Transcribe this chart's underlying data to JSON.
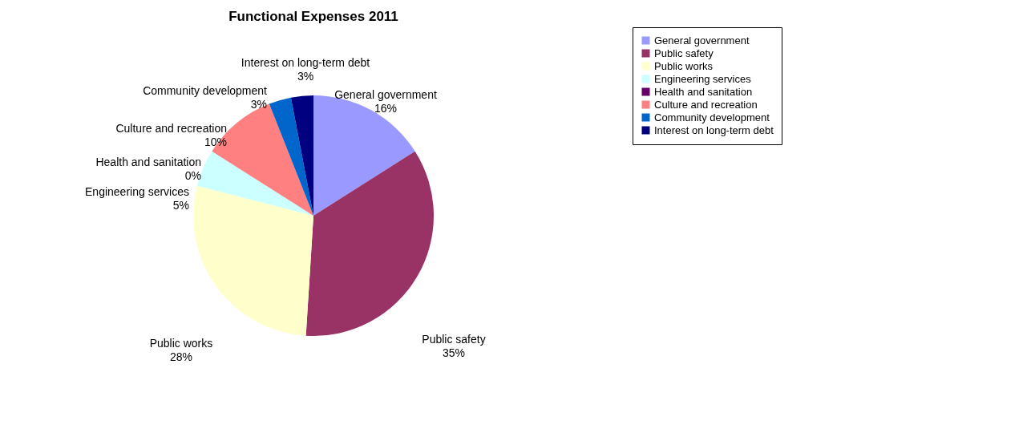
{
  "chart_data": {
    "type": "pie",
    "title": "Functional Expenses 2011",
    "categories": [
      "General government",
      "Public safety",
      "Public works",
      "Engineering services",
      "Health and sanitation",
      "Culture and recreation",
      "Community development",
      "Interest on long-term debt"
    ],
    "values": [
      16,
      35,
      28,
      5,
      0,
      10,
      3,
      3
    ],
    "value_labels": [
      "16%",
      "35%",
      "28%",
      "5%",
      "0%",
      "10%",
      "3%",
      "3%"
    ],
    "colors": [
      "#9999ff",
      "#993366",
      "#ffffcc",
      "#ccffff",
      "#660066",
      "#ff8080",
      "#0066cc",
      "#000080"
    ],
    "legend": "right"
  }
}
